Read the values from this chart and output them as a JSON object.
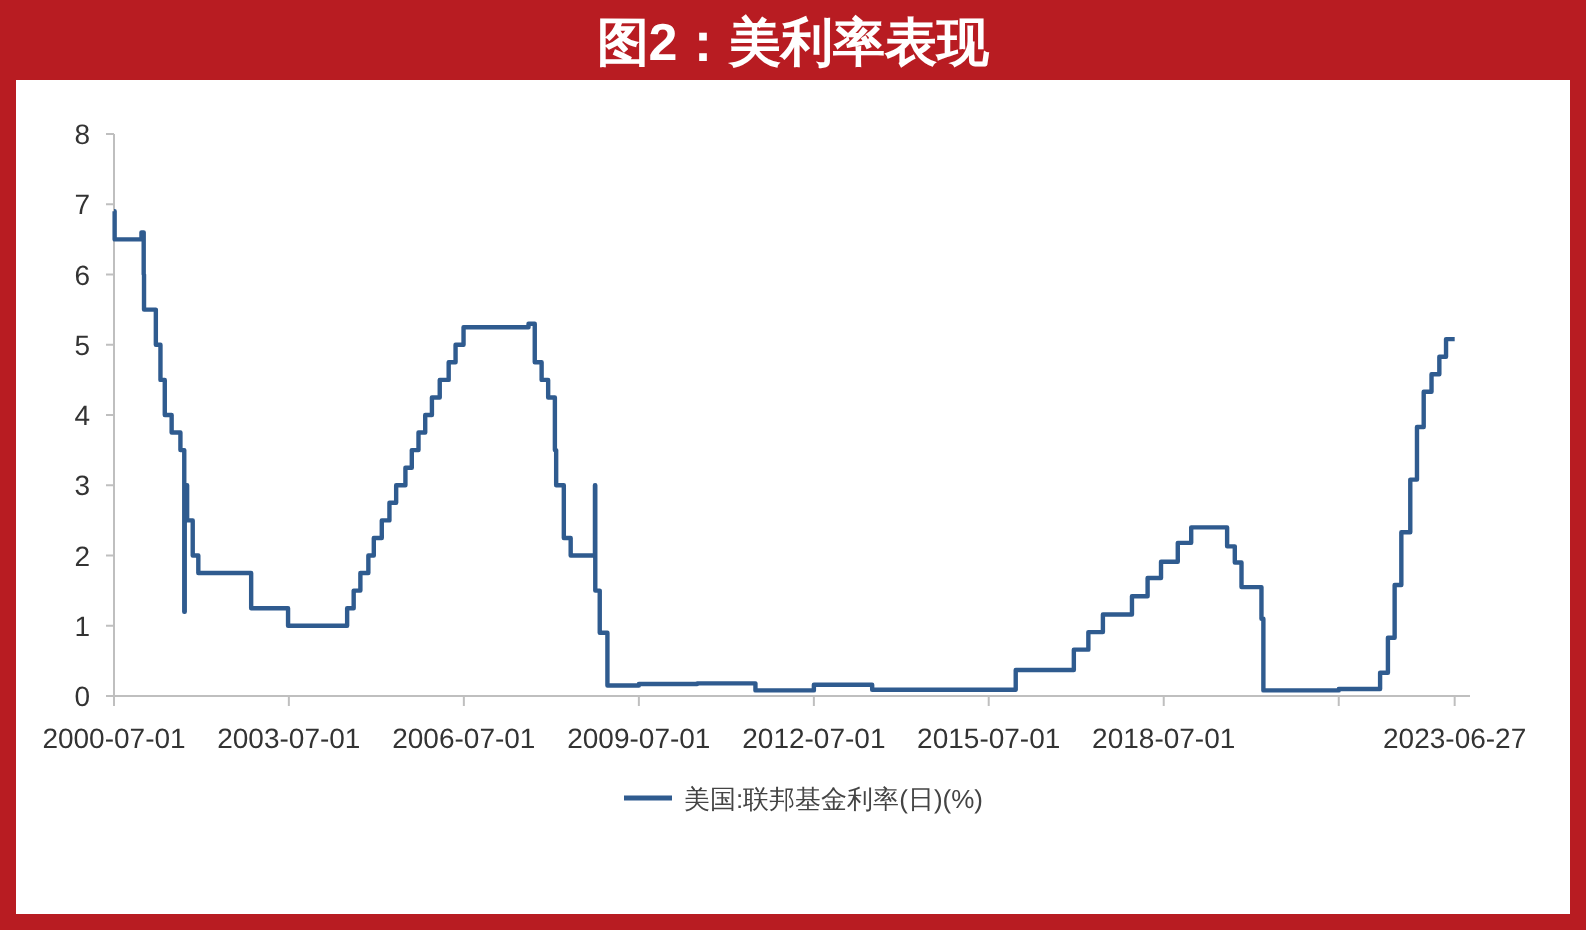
{
  "chart_data": {
    "type": "step",
    "title": "图2：美利率表现",
    "xlim": [
      "2000-07-01",
      "2023-10-01"
    ],
    "ylim": [
      0,
      8
    ],
    "yticks": [
      0,
      1,
      2,
      3,
      4,
      5,
      6,
      7,
      8
    ],
    "xticks": [
      "2000-07-01",
      "2003-07-01",
      "2006-07-01",
      "2009-07-01",
      "2012-07-01",
      "2015-07-01",
      "2018-07-01",
      {
        "value": "2021-07-01",
        "label": null
      },
      "2023-06-27"
    ],
    "grid": false,
    "legend": "bottom",
    "marker": "none",
    "line_style": "solid",
    "series": [
      {
        "name": "美国:联邦基金利率(日)(%)",
        "color": "#2f5b8f",
        "x": [
          "2000-07-01",
          "2000-07-05",
          "2000-12-20",
          "2001-01-03",
          "2001-01-05",
          "2001-03-20",
          "2001-04-18",
          "2001-05-15",
          "2001-06-27",
          "2001-08-21",
          "2001-09-14",
          "2001-09-17",
          "2001-10-02",
          "2001-11-06",
          "2001-12-11",
          "2002-11-07",
          "2003-06-26",
          "2003-09-10",
          "2004-06-30",
          "2004-08-10",
          "2004-09-21",
          "2004-11-10",
          "2004-12-14",
          "2005-02-02",
          "2005-03-22",
          "2005-05-03",
          "2005-06-30",
          "2005-08-09",
          "2005-09-20",
          "2005-11-01",
          "2005-12-13",
          "2006-01-31",
          "2006-03-28",
          "2006-05-10",
          "2006-06-29",
          "2007-08-10",
          "2007-09-18",
          "2007-10-31",
          "2007-12-11",
          "2008-01-22",
          "2008-01-30",
          "2008-03-18",
          "2008-04-30",
          "2008-09-16",
          "2008-09-29",
          "2008-10-01",
          "2008-10-29",
          "2008-12-16",
          "2009-07-01",
          "2010-07-01",
          "2011-07-01",
          "2012-07-01",
          "2013-07-01",
          "2014-07-01",
          "2015-12-17",
          "2016-12-15",
          "2017-03-16",
          "2017-06-15",
          "2017-12-14",
          "2018-03-22",
          "2018-06-14",
          "2018-09-27",
          "2018-12-20",
          "2019-08-02",
          "2019-09-19",
          "2019-10-31",
          "2020-03-04",
          "2020-03-16",
          "2021-07-01",
          "2022-03-17",
          "2022-05-05",
          "2022-06-16",
          "2022-07-28",
          "2022-09-22",
          "2022-11-03",
          "2022-12-15",
          "2023-02-02",
          "2023-03-23",
          "2023-05-04",
          "2023-06-27"
        ],
        "values": [
          6.9,
          6.5,
          6.6,
          6.0,
          5.5,
          5.0,
          4.5,
          4.0,
          3.75,
          3.5,
          1.2,
          3.0,
          2.5,
          2.0,
          1.75,
          1.25,
          1.0,
          1.0,
          1.25,
          1.5,
          1.75,
          2.0,
          2.25,
          2.5,
          2.75,
          3.0,
          3.25,
          3.5,
          3.75,
          4.0,
          4.25,
          4.5,
          4.75,
          5.0,
          5.25,
          5.3,
          4.75,
          4.5,
          4.25,
          3.5,
          3.0,
          2.25,
          2.0,
          2.0,
          3.0,
          1.5,
          0.9,
          0.15,
          0.17,
          0.18,
          0.08,
          0.16,
          0.09,
          0.09,
          0.37,
          0.66,
          0.91,
          1.16,
          1.42,
          1.68,
          1.91,
          2.18,
          2.4,
          2.13,
          1.9,
          1.55,
          1.1,
          0.08,
          0.1,
          0.33,
          0.83,
          1.58,
          2.33,
          3.08,
          3.83,
          4.33,
          4.58,
          4.83,
          5.08,
          5.08
        ]
      }
    ]
  }
}
